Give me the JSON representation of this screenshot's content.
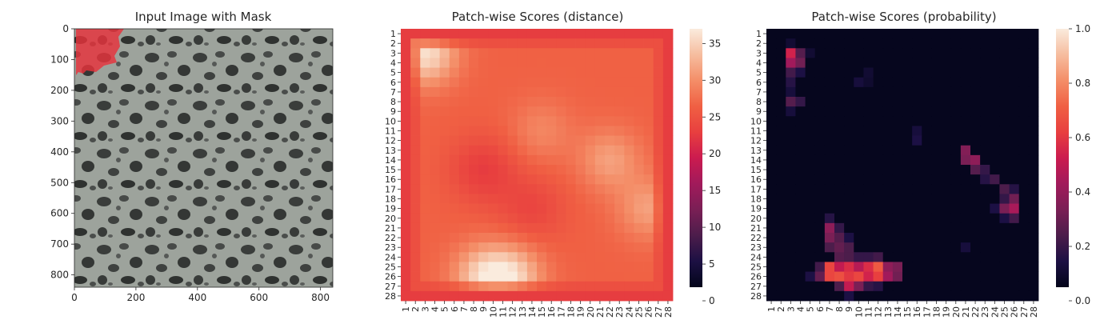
{
  "panels": {
    "image": {
      "title": "Input Image with Mask",
      "xticks": [
        "0",
        "200",
        "400",
        "600",
        "800"
      ],
      "yticks": [
        "0",
        "100",
        "200",
        "300",
        "400",
        "500",
        "600",
        "700",
        "800"
      ],
      "mask_color": "#e8323c"
    },
    "distance": {
      "title": "Patch-wise Scores (distance)",
      "colorbar_ticks": [
        "0",
        "5",
        "10",
        "15",
        "20",
        "25",
        "30",
        "35"
      ]
    },
    "probability": {
      "title": "Patch-wise Scores (probability)",
      "colorbar_ticks": [
        "0.0",
        "0.2",
        "0.4",
        "0.6",
        "0.8",
        "1.0"
      ]
    }
  },
  "chart_data": [
    {
      "type": "image",
      "title": "Input Image with Mask",
      "xlim": [
        0,
        840
      ],
      "ylim": [
        840,
        0
      ],
      "xticks": [
        0,
        200,
        400,
        600,
        800
      ],
      "yticks": [
        0,
        100,
        200,
        300,
        400,
        500,
        600,
        700,
        800
      ],
      "mask_region": "top-left corner, approx x 0-160, y 0-140",
      "mask_color": "#e8323c"
    },
    {
      "type": "heatmap",
      "title": "Patch-wise Scores (distance)",
      "rows": 28,
      "cols": 28,
      "row_labels": [
        "1",
        "2",
        "3",
        "4",
        "5",
        "6",
        "7",
        "8",
        "9",
        "10",
        "11",
        "12",
        "13",
        "14",
        "15",
        "16",
        "17",
        "18",
        "19",
        "20",
        "21",
        "22",
        "23",
        "24",
        "25",
        "26",
        "27",
        "28"
      ],
      "col_labels": [
        "1",
        "2",
        "3",
        "4",
        "5",
        "6",
        "7",
        "8",
        "9",
        "10",
        "11",
        "12",
        "13",
        "14",
        "15",
        "16",
        "17",
        "18",
        "19",
        "20",
        "21",
        "22",
        "23",
        "24",
        "25",
        "26",
        "27",
        "28"
      ],
      "vmin": 0,
      "vmax": 37,
      "colormap": "rocket",
      "colorbar_ticks": [
        0,
        5,
        10,
        15,
        20,
        25,
        30,
        35
      ],
      "base": 26,
      "border_value": 22,
      "peaks": [
        {
          "row": 3,
          "col": 3,
          "value": 36
        },
        {
          "row": 26,
          "col": 9,
          "value": 34
        },
        {
          "row": 26,
          "col": 12,
          "value": 34
        },
        {
          "row": 14,
          "col": 22,
          "value": 31
        },
        {
          "row": 19,
          "col": 26,
          "value": 31
        },
        {
          "row": 11,
          "col": 15,
          "value": 29
        }
      ],
      "troughs": [
        {
          "row": 15,
          "col": 9,
          "value": 22
        },
        {
          "row": 19,
          "col": 14,
          "value": 23
        }
      ]
    },
    {
      "type": "heatmap",
      "title": "Patch-wise Scores (probability)",
      "rows": 28,
      "cols": 28,
      "row_labels": [
        "1",
        "2",
        "3",
        "4",
        "5",
        "6",
        "7",
        "8",
        "9",
        "10",
        "11",
        "12",
        "13",
        "14",
        "15",
        "16",
        "17",
        "18",
        "19",
        "20",
        "21",
        "22",
        "23",
        "24",
        "25",
        "26",
        "27",
        "28"
      ],
      "col_labels": [
        "1",
        "2",
        "3",
        "4",
        "5",
        "6",
        "7",
        "8",
        "9",
        "10",
        "11",
        "12",
        "13",
        "14",
        "15",
        "16",
        "17",
        "18",
        "19",
        "20",
        "21",
        "22",
        "23",
        "24",
        "25",
        "26",
        "27",
        "28"
      ],
      "vmin": 0.0,
      "vmax": 1.0,
      "colormap": "rocket",
      "colorbar_ticks": [
        0.0,
        0.2,
        0.4,
        0.6,
        0.8,
        1.0
      ],
      "nonzero_cells": [
        {
          "row": 3,
          "col": 3,
          "value": 0.52
        },
        {
          "row": 4,
          "col": 3,
          "value": 0.4
        },
        {
          "row": 4,
          "col": 4,
          "value": 0.28
        },
        {
          "row": 3,
          "col": 4,
          "value": 0.22
        },
        {
          "row": 5,
          "col": 3,
          "value": 0.18
        },
        {
          "row": 6,
          "col": 3,
          "value": 0.12
        },
        {
          "row": 8,
          "col": 3,
          "value": 0.22
        },
        {
          "row": 8,
          "col": 4,
          "value": 0.15
        },
        {
          "row": 7,
          "col": 3,
          "value": 0.08
        },
        {
          "row": 2,
          "col": 3,
          "value": 0.06
        },
        {
          "row": 3,
          "col": 5,
          "value": 0.06
        },
        {
          "row": 5,
          "col": 4,
          "value": 0.1
        },
        {
          "row": 9,
          "col": 3,
          "value": 0.08
        },
        {
          "row": 6,
          "col": 10,
          "value": 0.08
        },
        {
          "row": 5,
          "col": 11,
          "value": 0.06
        },
        {
          "row": 6,
          "col": 11,
          "value": 0.05
        },
        {
          "row": 12,
          "col": 16,
          "value": 0.1
        },
        {
          "row": 11,
          "col": 16,
          "value": 0.08
        },
        {
          "row": 13,
          "col": 21,
          "value": 0.32
        },
        {
          "row": 14,
          "col": 21,
          "value": 0.3
        },
        {
          "row": 14,
          "col": 22,
          "value": 0.35
        },
        {
          "row": 15,
          "col": 22,
          "value": 0.22
        },
        {
          "row": 15,
          "col": 23,
          "value": 0.15
        },
        {
          "row": 16,
          "col": 24,
          "value": 0.18
        },
        {
          "row": 16,
          "col": 23,
          "value": 0.12
        },
        {
          "row": 17,
          "col": 25,
          "value": 0.2
        },
        {
          "row": 18,
          "col": 26,
          "value": 0.28
        },
        {
          "row": 19,
          "col": 26,
          "value": 0.42
        },
        {
          "row": 19,
          "col": 25,
          "value": 0.3
        },
        {
          "row": 18,
          "col": 25,
          "value": 0.15
        },
        {
          "row": 20,
          "col": 26,
          "value": 0.18
        },
        {
          "row": 17,
          "col": 26,
          "value": 0.12
        },
        {
          "row": 19,
          "col": 24,
          "value": 0.1
        },
        {
          "row": 21,
          "col": 7,
          "value": 0.35
        },
        {
          "row": 22,
          "col": 7,
          "value": 0.3
        },
        {
          "row": 22,
          "col": 8,
          "value": 0.22
        },
        {
          "row": 21,
          "col": 8,
          "value": 0.15
        },
        {
          "row": 20,
          "col": 7,
          "value": 0.12
        },
        {
          "row": 23,
          "col": 7,
          "value": 0.2
        },
        {
          "row": 23,
          "col": 8,
          "value": 0.25
        },
        {
          "row": 23,
          "col": 9,
          "value": 0.2
        },
        {
          "row": 24,
          "col": 8,
          "value": 0.22
        },
        {
          "row": 24,
          "col": 9,
          "value": 0.2
        },
        {
          "row": 24,
          "col": 10,
          "value": 0.15
        },
        {
          "row": 24,
          "col": 11,
          "value": 0.15
        },
        {
          "row": 24,
          "col": 12,
          "value": 0.18
        },
        {
          "row": 25,
          "col": 7,
          "value": 0.62
        },
        {
          "row": 25,
          "col": 8,
          "value": 0.48
        },
        {
          "row": 25,
          "col": 9,
          "value": 0.55
        },
        {
          "row": 25,
          "col": 10,
          "value": 0.45
        },
        {
          "row": 25,
          "col": 11,
          "value": 0.55
        },
        {
          "row": 25,
          "col": 12,
          "value": 0.68
        },
        {
          "row": 25,
          "col": 13,
          "value": 0.35
        },
        {
          "row": 25,
          "col": 14,
          "value": 0.3
        },
        {
          "row": 26,
          "col": 7,
          "value": 0.62
        },
        {
          "row": 26,
          "col": 8,
          "value": 0.65
        },
        {
          "row": 26,
          "col": 9,
          "value": 0.58
        },
        {
          "row": 26,
          "col": 10,
          "value": 0.62
        },
        {
          "row": 26,
          "col": 11,
          "value": 0.52
        },
        {
          "row": 26,
          "col": 12,
          "value": 0.6
        },
        {
          "row": 26,
          "col": 13,
          "value": 0.4
        },
        {
          "row": 26,
          "col": 14,
          "value": 0.28
        },
        {
          "row": 26,
          "col": 6,
          "value": 0.25
        },
        {
          "row": 27,
          "col": 9,
          "value": 0.48
        },
        {
          "row": 27,
          "col": 8,
          "value": 0.2
        },
        {
          "row": 27,
          "col": 10,
          "value": 0.3
        },
        {
          "row": 27,
          "col": 11,
          "value": 0.15
        },
        {
          "row": 27,
          "col": 12,
          "value": 0.12
        },
        {
          "row": 25,
          "col": 6,
          "value": 0.18
        },
        {
          "row": 26,
          "col": 5,
          "value": 0.1
        },
        {
          "row": 28,
          "col": 9,
          "value": 0.1
        },
        {
          "row": 22,
          "col": 9,
          "value": 0.1
        },
        {
          "row": 23,
          "col": 21,
          "value": 0.08
        },
        {
          "row": 20,
          "col": 25,
          "value": 0.1
        }
      ]
    }
  ]
}
